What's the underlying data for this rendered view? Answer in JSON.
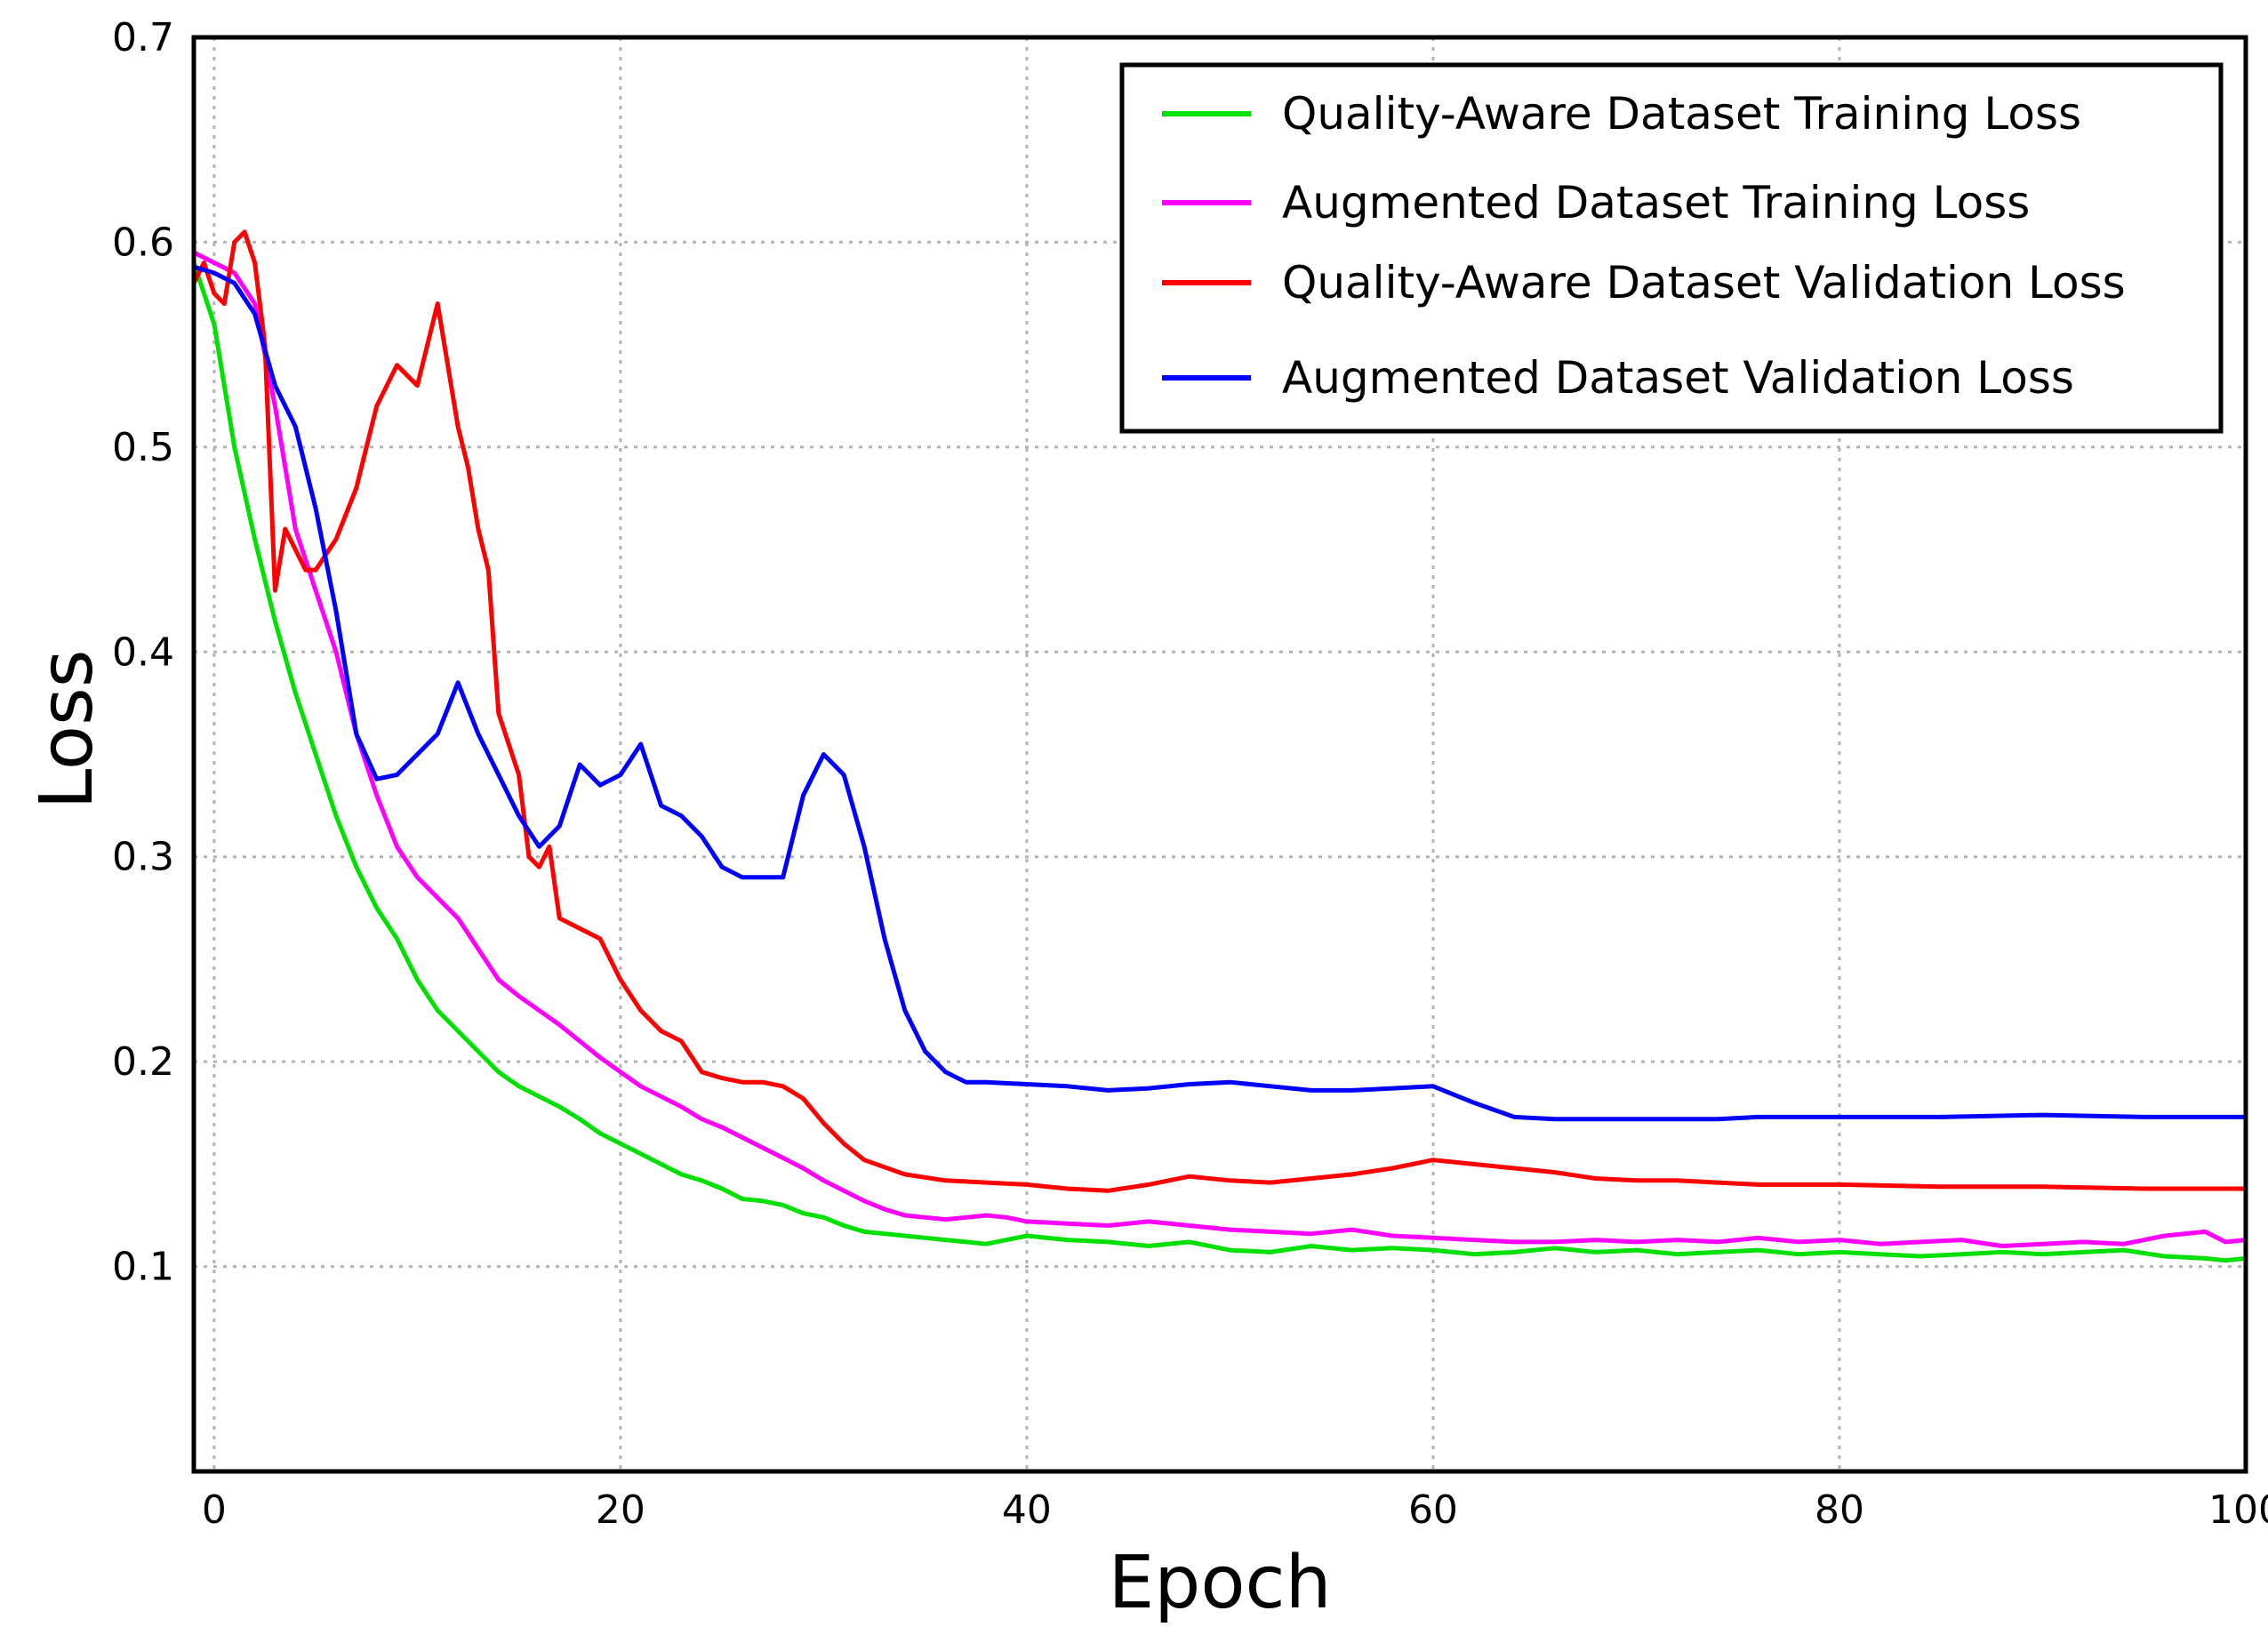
{
  "chart_data": {
    "type": "line",
    "title": "",
    "xlabel": "Epoch",
    "ylabel": "Loss",
    "xlim": [
      -1,
      100
    ],
    "ylim": [
      0.0,
      0.7
    ],
    "grid": true,
    "legend_position": "top-right",
    "xticks": [
      0,
      20,
      40,
      60,
      80,
      100
    ],
    "xtick_labels": [
      "0",
      "20",
      "40",
      "60",
      "80",
      "100"
    ],
    "yticks": [
      0.1,
      0.2,
      0.3,
      0.4,
      0.5,
      0.6,
      0.7
    ],
    "ytick_labels": [
      "0.1",
      "0.2",
      "0.3",
      "0.4",
      "0.5",
      "0.6",
      "0.7"
    ],
    "series": [
      {
        "name": "Quality-Aware Dataset Training Loss",
        "color": "#00e000",
        "x": [
          -1,
          0,
          1,
          2,
          3,
          4,
          5,
          6,
          7,
          8,
          9,
          10,
          11,
          12,
          13,
          14,
          15,
          16,
          17,
          18,
          19,
          20,
          21,
          22,
          23,
          24,
          25,
          26,
          27,
          28,
          29,
          30,
          31,
          32,
          33,
          34,
          35,
          36,
          37,
          38,
          39,
          40,
          42,
          44,
          46,
          48,
          50,
          52,
          54,
          56,
          58,
          60,
          62,
          64,
          66,
          68,
          70,
          72,
          74,
          76,
          78,
          80,
          82,
          84,
          86,
          88,
          90,
          92,
          94,
          96,
          98,
          99,
          100
        ],
        "y": [
          0.59,
          0.56,
          0.5,
          0.455,
          0.415,
          0.38,
          0.35,
          0.32,
          0.295,
          0.275,
          0.26,
          0.24,
          0.225,
          0.215,
          0.205,
          0.195,
          0.188,
          0.183,
          0.178,
          0.172,
          0.165,
          0.16,
          0.155,
          0.15,
          0.145,
          0.142,
          0.138,
          0.133,
          0.132,
          0.13,
          0.126,
          0.124,
          0.12,
          0.117,
          0.116,
          0.115,
          0.114,
          0.113,
          0.112,
          0.111,
          0.113,
          0.115,
          0.113,
          0.112,
          0.11,
          0.112,
          0.108,
          0.107,
          0.11,
          0.108,
          0.109,
          0.108,
          0.106,
          0.107,
          0.109,
          0.107,
          0.108,
          0.106,
          0.107,
          0.108,
          0.106,
          0.107,
          0.106,
          0.105,
          0.106,
          0.107,
          0.106,
          0.107,
          0.108,
          0.105,
          0.104,
          0.103,
          0.104
        ]
      },
      {
        "name": "Augmented Dataset Training Loss",
        "color": "#ff00ff",
        "x": [
          -1,
          0,
          1,
          2,
          3,
          4,
          5,
          6,
          7,
          8,
          9,
          10,
          11,
          12,
          13,
          14,
          15,
          16,
          17,
          18,
          19,
          20,
          21,
          22,
          23,
          24,
          25,
          26,
          27,
          28,
          29,
          30,
          31,
          32,
          33,
          34,
          35,
          36,
          37,
          38,
          39,
          40,
          42,
          44,
          46,
          48,
          50,
          52,
          54,
          56,
          58,
          60,
          62,
          64,
          66,
          68,
          70,
          72,
          74,
          76,
          78,
          80,
          82,
          84,
          86,
          88,
          90,
          92,
          94,
          96,
          98,
          99,
          100
        ],
        "y": [
          0.595,
          0.59,
          0.585,
          0.57,
          0.52,
          0.46,
          0.43,
          0.4,
          0.36,
          0.33,
          0.305,
          0.29,
          0.28,
          0.27,
          0.255,
          0.24,
          0.232,
          0.225,
          0.218,
          0.21,
          0.202,
          0.195,
          0.188,
          0.183,
          0.178,
          0.172,
          0.168,
          0.163,
          0.158,
          0.153,
          0.148,
          0.142,
          0.137,
          0.132,
          0.128,
          0.125,
          0.124,
          0.123,
          0.124,
          0.125,
          0.124,
          0.122,
          0.121,
          0.12,
          0.122,
          0.12,
          0.118,
          0.117,
          0.116,
          0.118,
          0.115,
          0.114,
          0.113,
          0.112,
          0.112,
          0.113,
          0.112,
          0.113,
          0.112,
          0.114,
          0.112,
          0.113,
          0.111,
          0.112,
          0.113,
          0.11,
          0.111,
          0.112,
          0.111,
          0.115,
          0.117,
          0.112,
          0.113
        ]
      },
      {
        "name": "Quality-Aware Dataset Validation Loss",
        "color": "#ff0000",
        "x": [
          -1,
          -0.5,
          0,
          0.5,
          1,
          1.5,
          2,
          2.5,
          3,
          3.5,
          4,
          4.5,
          5,
          6,
          7,
          7.5,
          8,
          9,
          10,
          11,
          12,
          12.5,
          13,
          13.5,
          14,
          15,
          15.5,
          16,
          16.5,
          17,
          18,
          19,
          20,
          21,
          22,
          23,
          24,
          25,
          26,
          27,
          28,
          29,
          30,
          31,
          32,
          34,
          36,
          38,
          40,
          42,
          44,
          46,
          48,
          50,
          52,
          54,
          56,
          58,
          60,
          62,
          64,
          66,
          68,
          70,
          72,
          74,
          76,
          78,
          80,
          85,
          90,
          95,
          100
        ],
        "y": [
          0.58,
          0.59,
          0.575,
          0.57,
          0.6,
          0.605,
          0.59,
          0.55,
          0.43,
          0.46,
          0.45,
          0.44,
          0.44,
          0.455,
          0.48,
          0.5,
          0.52,
          0.54,
          0.53,
          0.57,
          0.51,
          0.49,
          0.46,
          0.44,
          0.37,
          0.34,
          0.3,
          0.295,
          0.305,
          0.27,
          0.265,
          0.26,
          0.24,
          0.225,
          0.215,
          0.21,
          0.195,
          0.192,
          0.19,
          0.19,
          0.188,
          0.182,
          0.17,
          0.16,
          0.152,
          0.145,
          0.142,
          0.141,
          0.14,
          0.138,
          0.137,
          0.14,
          0.144,
          0.142,
          0.141,
          0.143,
          0.145,
          0.148,
          0.152,
          0.15,
          0.148,
          0.146,
          0.143,
          0.142,
          0.142,
          0.141,
          0.14,
          0.14,
          0.14,
          0.139,
          0.139,
          0.138,
          0.138
        ]
      },
      {
        "name": "Augmented Dataset Validation Loss",
        "color": "#0000ff",
        "x": [
          -1,
          0,
          1,
          2,
          3,
          4,
          5,
          6,
          7,
          8,
          9,
          10,
          11,
          12,
          13,
          14,
          15,
          16,
          17,
          18,
          19,
          20,
          21,
          22,
          23,
          24,
          25,
          26,
          27,
          28,
          29,
          30,
          31,
          32,
          33,
          34,
          35,
          36,
          37,
          38,
          40,
          42,
          44,
          46,
          48,
          50,
          52,
          54,
          56,
          58,
          60,
          62,
          64,
          66,
          68,
          70,
          72,
          74,
          76,
          78,
          80,
          85,
          90,
          95,
          100
        ],
        "y": [
          0.588,
          0.585,
          0.58,
          0.565,
          0.53,
          0.51,
          0.47,
          0.42,
          0.36,
          0.338,
          0.34,
          0.35,
          0.36,
          0.385,
          0.36,
          0.34,
          0.32,
          0.305,
          0.315,
          0.345,
          0.335,
          0.34,
          0.355,
          0.325,
          0.32,
          0.31,
          0.295,
          0.29,
          0.29,
          0.29,
          0.33,
          0.35,
          0.34,
          0.305,
          0.26,
          0.225,
          0.205,
          0.195,
          0.19,
          0.19,
          0.189,
          0.188,
          0.186,
          0.187,
          0.189,
          0.19,
          0.188,
          0.186,
          0.186,
          0.187,
          0.188,
          0.18,
          0.173,
          0.172,
          0.172,
          0.172,
          0.172,
          0.172,
          0.173,
          0.173,
          0.173,
          0.173,
          0.174,
          0.173,
          0.173
        ]
      }
    ]
  }
}
